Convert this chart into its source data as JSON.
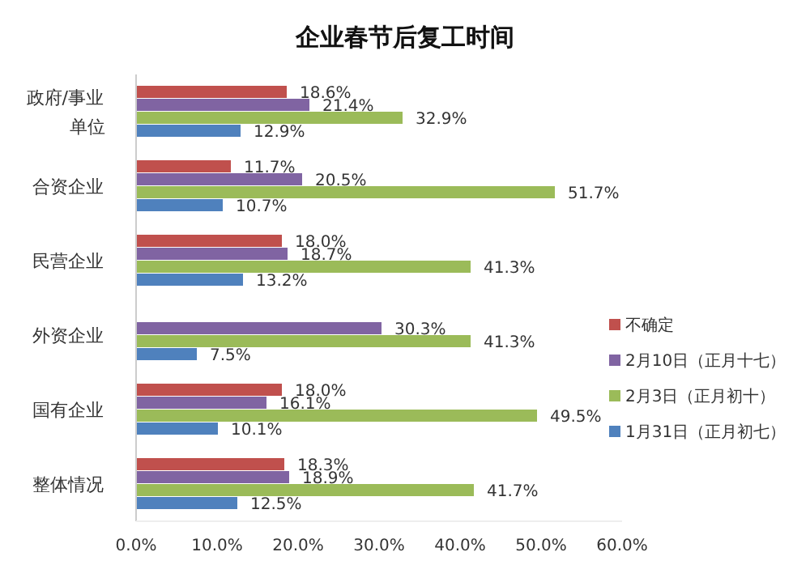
{
  "chart_data": {
    "type": "bar",
    "orientation": "horizontal",
    "title": "企业春节后复工时间",
    "categories": [
      "政府/事业单位",
      "合资企业",
      "民营企业",
      "外资企业",
      "国有企业",
      "整体情况"
    ],
    "series": [
      {
        "name": "不确定",
        "color": "#c0504d",
        "values": [
          18.6,
          11.7,
          18.0,
          null,
          18.0,
          18.3
        ],
        "value_labels": [
          "18.6%",
          "11.7%",
          "18.0%",
          null,
          "18.0%",
          "18.3%"
        ]
      },
      {
        "name": "2月10日（正月十七）",
        "color": "#8064a2",
        "values": [
          21.4,
          20.5,
          18.7,
          30.3,
          16.1,
          18.9
        ],
        "value_labels": [
          "21.4%",
          "20.5%",
          "18.7%",
          "30.3%",
          "16.1%",
          "18.9%"
        ]
      },
      {
        "name": "2月3日（正月初十）",
        "color": "#9bbb59",
        "values": [
          32.9,
          51.7,
          41.3,
          41.3,
          49.5,
          41.7
        ],
        "value_labels": [
          "32.9%",
          "51.7%",
          "41.3%",
          "41.3%",
          "49.5%",
          "41.7%"
        ]
      },
      {
        "name": "1月31日（正月初七）",
        "color": "#4f81bd",
        "values": [
          12.9,
          10.7,
          13.2,
          7.5,
          10.1,
          12.5
        ],
        "value_labels": [
          "12.9%",
          "10.7%",
          "13.2%",
          "7.5%",
          "10.1%",
          "12.5%"
        ]
      }
    ],
    "xlim": [
      0,
      60
    ],
    "xticks": [
      {
        "value": 0,
        "label": "0.0%"
      },
      {
        "value": 10,
        "label": "10.0%"
      },
      {
        "value": 20,
        "label": "20.0%"
      },
      {
        "value": 30,
        "label": "30.0%"
      },
      {
        "value": 40,
        "label": "40.0%"
      },
      {
        "value": 50,
        "label": "50.0%"
      },
      {
        "value": 60,
        "label": "60.0%"
      }
    ],
    "legend": "right",
    "grid": false
  }
}
